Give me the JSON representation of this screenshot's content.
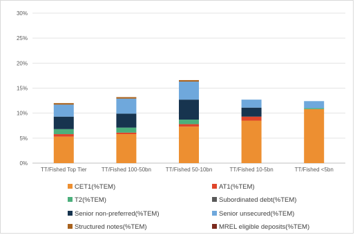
{
  "chart_data": {
    "type": "bar",
    "stacked": true,
    "title": "",
    "xlabel": "",
    "ylabel": "",
    "ylim": [
      0,
      30
    ],
    "yticks": [
      0,
      5,
      10,
      15,
      20,
      25,
      30
    ],
    "ytick_labels": [
      "0%",
      "5%",
      "10%",
      "15%",
      "20%",
      "25%",
      "30%"
    ],
    "grid": true,
    "legend_position": "bottom",
    "categories": [
      "TT/Fished Top Tier",
      "TT/Fished 100-50bn",
      "TT/Fished 50-10bn",
      "TT/Fished 10-5bn",
      "TT/Fished <5bn"
    ],
    "series": [
      {
        "name": "CET1(%TEM)",
        "color": "#ed8f31",
        "values": [
          5.3,
          5.8,
          7.3,
          8.5,
          10.8
        ]
      },
      {
        "name": "AT1(%TEM)",
        "color": "#e0452a",
        "values": [
          0.5,
          0.3,
          0.5,
          0.8,
          0.0
        ]
      },
      {
        "name": "T2(%TEM)",
        "color": "#4caf7c",
        "values": [
          1.0,
          1.0,
          0.9,
          0.0,
          0.2
        ]
      },
      {
        "name": "Subordinated debt(%TEM)",
        "color": "#595959",
        "values": [
          0.0,
          0.0,
          0.0,
          0.0,
          0.0
        ]
      },
      {
        "name": "Senior non-preferred(%TEM)",
        "color": "#17344f",
        "values": [
          2.5,
          2.8,
          4.0,
          1.8,
          0.0
        ]
      },
      {
        "name": "Senior unsecured(%TEM)",
        "color": "#6fa8dc",
        "values": [
          2.4,
          3.0,
          3.6,
          1.6,
          1.4
        ]
      },
      {
        "name": "Structured notes(%TEM)",
        "color": "#a8621e",
        "values": [
          0.3,
          0.3,
          0.3,
          0.0,
          0.0
        ]
      },
      {
        "name": "MREL eligible deposits(%TEM)",
        "color": "#7b2a1e",
        "values": [
          0.0,
          0.0,
          0.0,
          0.0,
          0.0
        ]
      }
    ]
  }
}
